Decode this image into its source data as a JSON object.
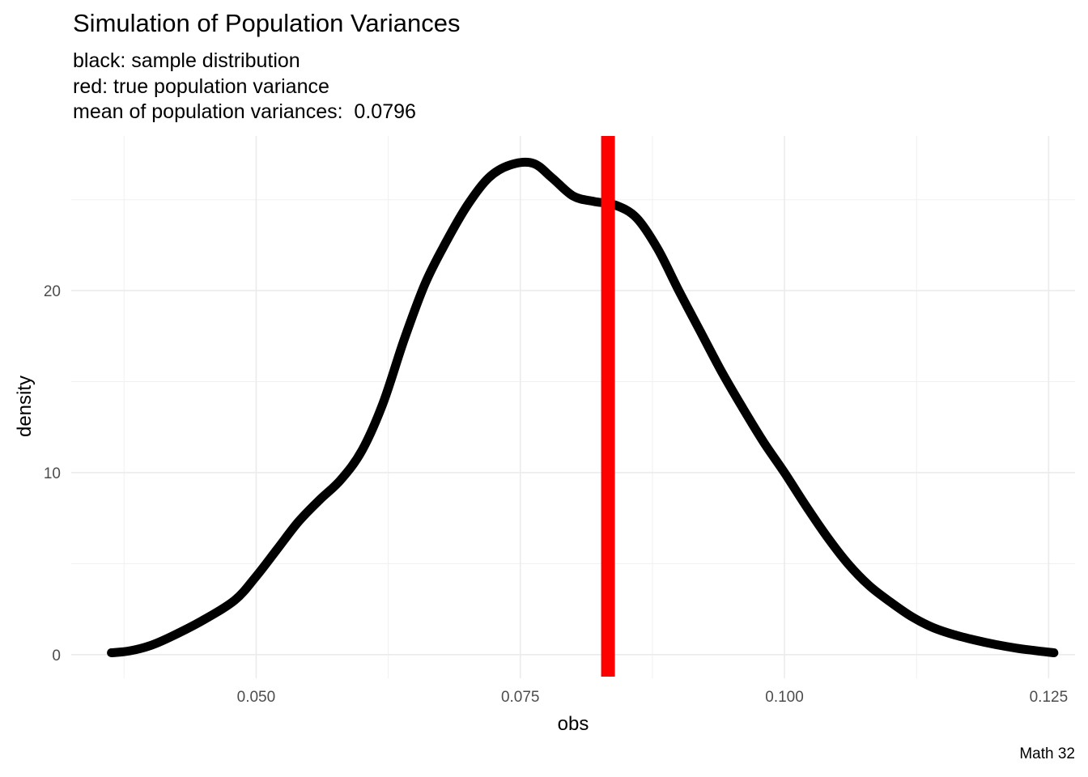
{
  "chart_data": {
    "type": "line",
    "title": "Simulation of Population Variances",
    "subtitle": [
      "black: sample distribution",
      "red: true population variance",
      "mean of population variances:  0.0796"
    ],
    "xlabel": "obs",
    "ylabel": "density",
    "caption": "Math 32",
    "xlim": [
      0.0325,
      0.1275
    ],
    "ylim": [
      -1.3,
      28.5
    ],
    "x_ticks": [
      "0.050",
      "0.075",
      "0.100",
      "0.125"
    ],
    "x_tick_values": [
      0.05,
      0.075,
      0.1,
      0.125
    ],
    "y_ticks": [
      "0",
      "10",
      "20"
    ],
    "y_tick_values": [
      0,
      10,
      20
    ],
    "grid": true,
    "vline": {
      "x": 0.0833,
      "color": "#ff0000",
      "label": "true population variance"
    },
    "series": [
      {
        "color": "#000000",
        "x": [
          0.0363,
          0.038,
          0.04,
          0.042,
          0.045,
          0.048,
          0.05,
          0.052,
          0.054,
          0.056,
          0.058,
          0.06,
          0.062,
          0.064,
          0.066,
          0.068,
          0.07,
          0.072,
          0.074,
          0.0762,
          0.078,
          0.08,
          0.082,
          0.084,
          0.086,
          0.088,
          0.09,
          0.092,
          0.094,
          0.096,
          0.098,
          0.1,
          0.102,
          0.104,
          0.106,
          0.108,
          0.11,
          0.112,
          0.114,
          0.116,
          0.118,
          0.12,
          0.122,
          0.124,
          0.1255
        ],
        "values": [
          0.1,
          0.2,
          0.5,
          1.0,
          1.9,
          3.0,
          4.3,
          5.8,
          7.3,
          8.5,
          9.6,
          11.2,
          13.8,
          17.3,
          20.4,
          22.7,
          24.7,
          26.2,
          26.9,
          27.0,
          26.2,
          25.2,
          24.9,
          24.7,
          24.0,
          22.3,
          20.0,
          17.8,
          15.6,
          13.6,
          11.7,
          10.0,
          8.2,
          6.5,
          5.0,
          3.8,
          2.9,
          2.1,
          1.5,
          1.1,
          0.8,
          0.55,
          0.35,
          0.2,
          0.1
        ]
      }
    ]
  }
}
